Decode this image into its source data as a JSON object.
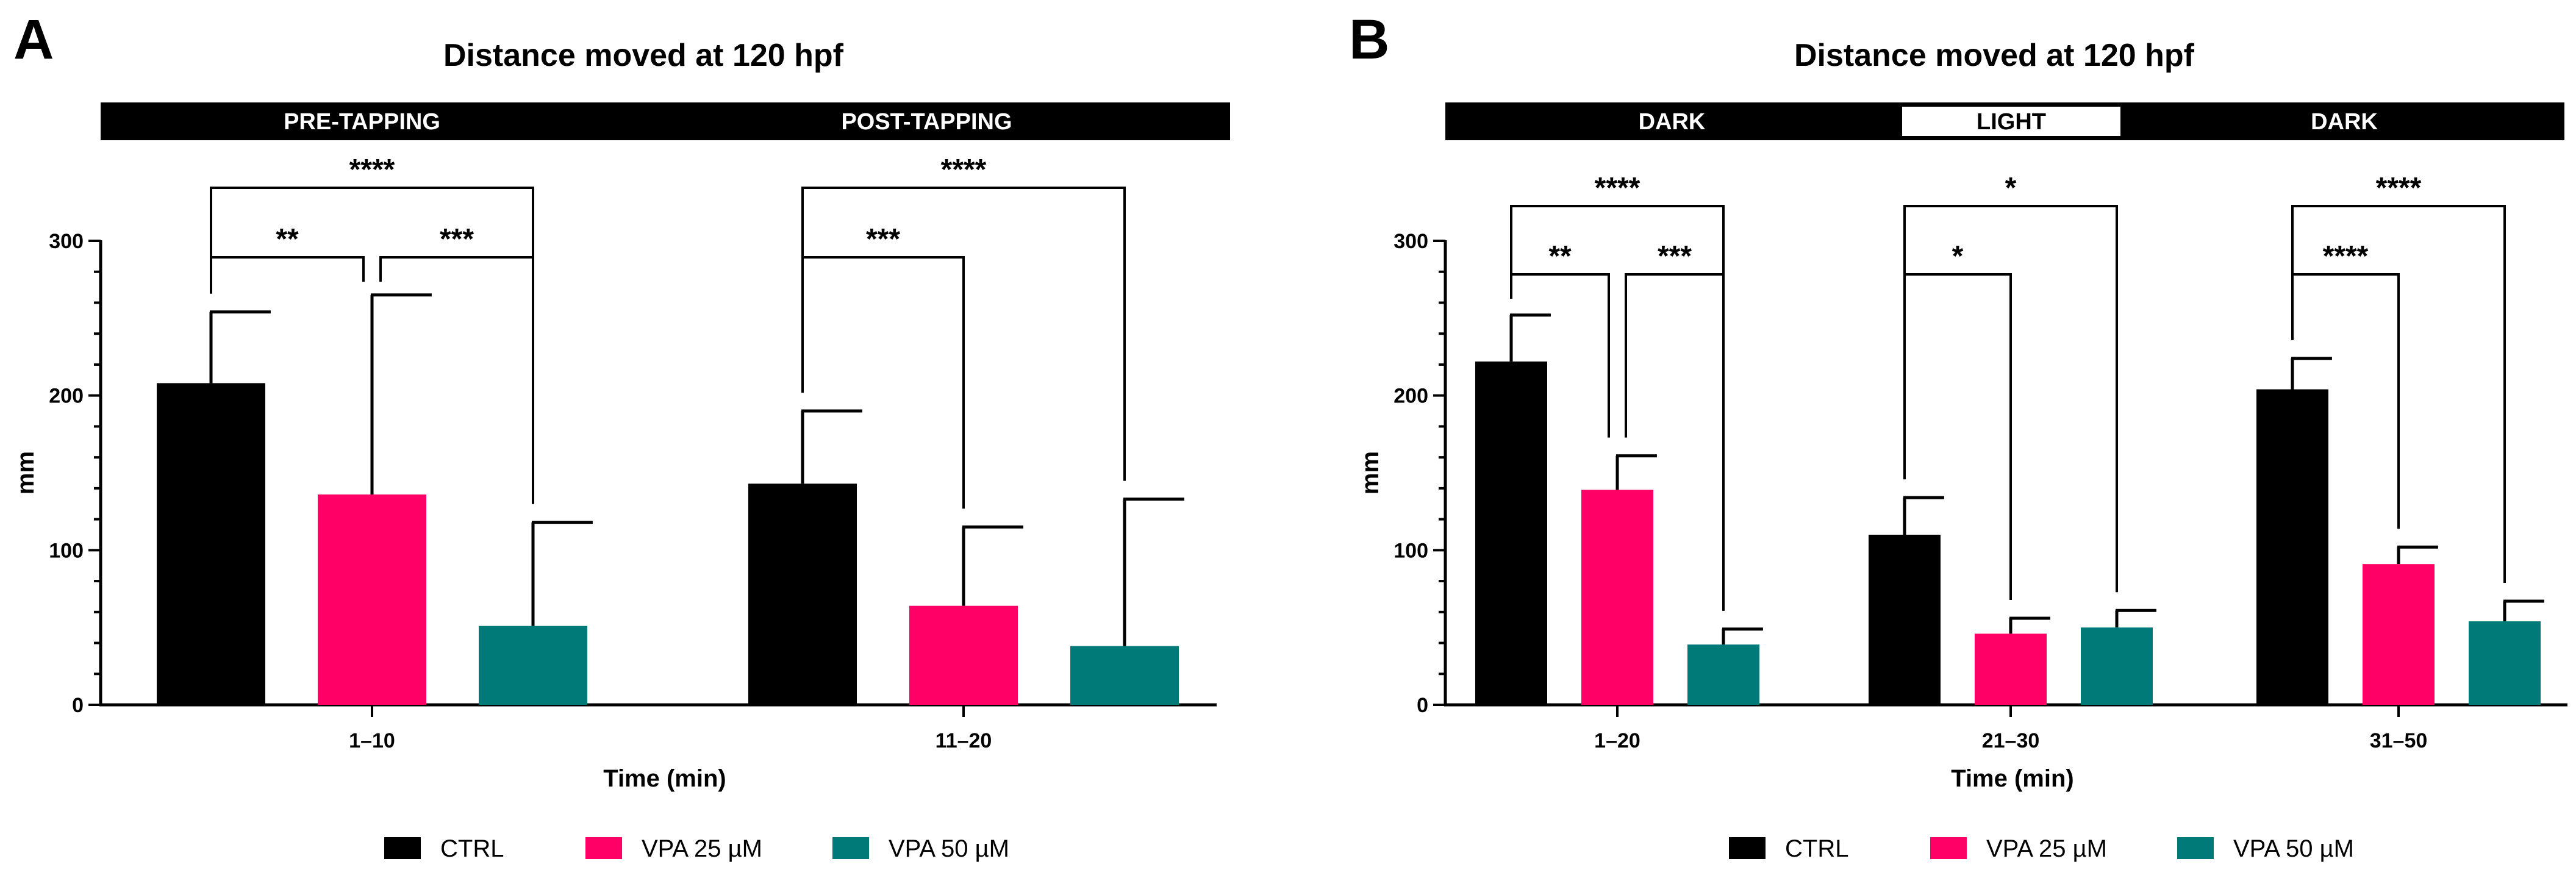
{
  "colors": {
    "CTRL": "#000000",
    "VPA 25 µM": "#ff0066",
    "VPA 50 µM": "#007a78"
  },
  "legend": [
    "CTRL",
    "VPA 25 µM",
    "VPA 50 µM"
  ],
  "chart_data": [
    {
      "type": "bar",
      "panel": "A",
      "title": "Distance moved at 120 hpf",
      "xlabel": "Time (min)",
      "ylabel": "mm",
      "ylim": [
        0,
        300
      ],
      "yticks": [
        0,
        100,
        200,
        300
      ],
      "bands": [
        {
          "label": "PRE-TAPPING",
          "style": "dark"
        },
        {
          "label": "POST-TAPPING",
          "style": "dark"
        }
      ],
      "categories": [
        "1–10",
        "11–20"
      ],
      "series": [
        {
          "name": "CTRL",
          "values": [
            208,
            143
          ],
          "error": [
            254,
            190
          ]
        },
        {
          "name": "VPA 25 µM",
          "values": [
            136,
            64
          ],
          "error": [
            265,
            115
          ]
        },
        {
          "name": "VPA 50 µM",
          "values": [
            51,
            38
          ],
          "error": [
            118,
            133
          ]
        }
      ],
      "significance": [
        {
          "category": 0,
          "from": 0,
          "to": 1,
          "label": "**"
        },
        {
          "category": 0,
          "from": 1,
          "to": 2,
          "label": "***"
        },
        {
          "category": 0,
          "from": 0,
          "to": 2,
          "label": "****"
        },
        {
          "category": 1,
          "from": 0,
          "to": 1,
          "label": "***"
        },
        {
          "category": 1,
          "from": 0,
          "to": 2,
          "label": "****"
        }
      ]
    },
    {
      "type": "bar",
      "panel": "B",
      "title": "Distance moved at 120 hpf",
      "xlabel": "Time (min)",
      "ylabel": "mm",
      "ylim": [
        0,
        300
      ],
      "yticks": [
        0,
        100,
        200,
        300
      ],
      "bands": [
        {
          "label": "DARK",
          "style": "dark"
        },
        {
          "label": "LIGHT",
          "style": "light"
        },
        {
          "label": "DARK",
          "style": "dark"
        }
      ],
      "categories": [
        "1–20",
        "21–30",
        "31–50"
      ],
      "series": [
        {
          "name": "CTRL",
          "values": [
            222,
            110,
            204
          ],
          "error": [
            252,
            134,
            224
          ]
        },
        {
          "name": "VPA 25 µM",
          "values": [
            139,
            46,
            91
          ],
          "error": [
            161,
            56,
            102
          ]
        },
        {
          "name": "VPA 50 µM",
          "values": [
            39,
            50,
            54
          ],
          "error": [
            49,
            61,
            67
          ]
        }
      ],
      "significance": [
        {
          "category": 0,
          "from": 0,
          "to": 1,
          "label": "**"
        },
        {
          "category": 0,
          "from": 1,
          "to": 2,
          "label": "***"
        },
        {
          "category": 0,
          "from": 0,
          "to": 2,
          "label": "****"
        },
        {
          "category": 1,
          "from": 0,
          "to": 1,
          "label": "*"
        },
        {
          "category": 1,
          "from": 0,
          "to": 2,
          "label": "*"
        },
        {
          "category": 2,
          "from": 0,
          "to": 1,
          "label": "****"
        },
        {
          "category": 2,
          "from": 0,
          "to": 2,
          "label": "****"
        }
      ]
    }
  ],
  "panel_letters": [
    "A",
    "B"
  ]
}
